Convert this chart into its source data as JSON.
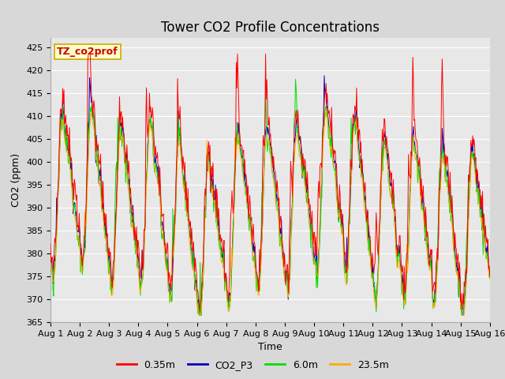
{
  "title": "Tower CO2 Profile Concentrations",
  "xlabel": "Time",
  "ylabel": "CO2 (ppm)",
  "ylim": [
    365,
    427
  ],
  "yticks": [
    365,
    370,
    375,
    380,
    385,
    390,
    395,
    400,
    405,
    410,
    415,
    420,
    425
  ],
  "xticklabels": [
    "Aug 1",
    "Aug 2",
    "Aug 3",
    "Aug 4",
    "Aug 5",
    "Aug 6",
    "Aug 7",
    "Aug 8",
    "Aug 9",
    "Aug 10",
    "Aug 11",
    "Aug 12",
    "Aug 13",
    "Aug 14",
    "Aug 15",
    "Aug 16"
  ],
  "series_colors": [
    "#ff0000",
    "#0000bb",
    "#00dd00",
    "#ffaa00"
  ],
  "series_labels": [
    "0.35m",
    "CO2_P3",
    "6.0m",
    "23.5m"
  ],
  "annotation_text": "TZ_co2prof",
  "annotation_bg": "#ffffcc",
  "annotation_border": "#ccaa00",
  "background_color": "#e8e8e8",
  "grid_color": "#ffffff",
  "n_days": 15,
  "points_per_day": 48,
  "seed": 42,
  "title_fontsize": 12,
  "axis_label_fontsize": 9,
  "tick_fontsize": 8
}
